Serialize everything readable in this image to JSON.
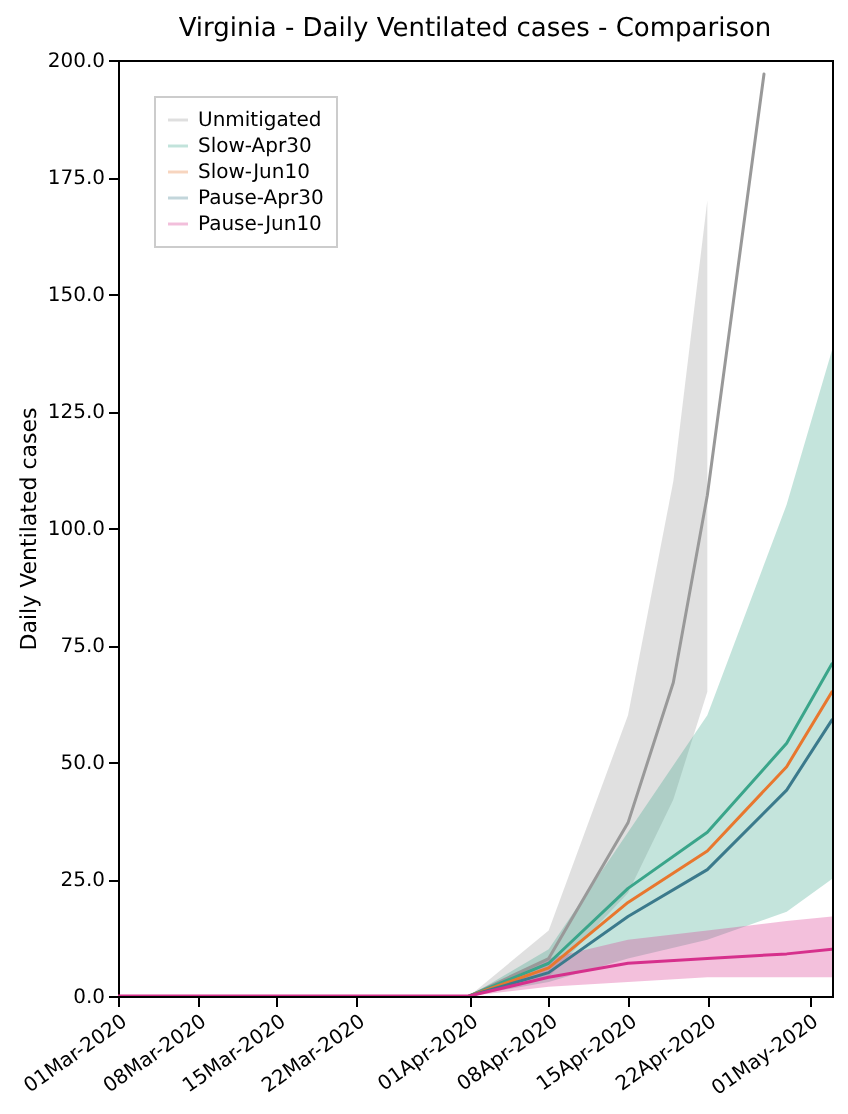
{
  "chart_data": {
    "type": "line",
    "title": "Virginia - Daily Ventilated cases - Comparison",
    "ylabel": "Daily Ventilated cases",
    "xlim": [
      "2020-03-01",
      "2020-05-03"
    ],
    "xticks": [
      {
        "value": "2020-03-01",
        "label": "01Mar-2020"
      },
      {
        "value": "2020-03-08",
        "label": "08Mar-2020"
      },
      {
        "value": "2020-03-15",
        "label": "15Mar-2020"
      },
      {
        "value": "2020-03-22",
        "label": "22Mar-2020"
      },
      {
        "value": "2020-04-01",
        "label": "01Apr-2020"
      },
      {
        "value": "2020-04-08",
        "label": "08Apr-2020"
      },
      {
        "value": "2020-04-15",
        "label": "15Apr-2020"
      },
      {
        "value": "2020-04-22",
        "label": "22Apr-2020"
      },
      {
        "value": "2020-05-01",
        "label": "01May-2020"
      }
    ],
    "ylim": [
      0,
      200
    ],
    "yticks": [
      {
        "value": 0,
        "label": "0.0"
      },
      {
        "value": 25,
        "label": "25.0"
      },
      {
        "value": 50,
        "label": "50.0"
      },
      {
        "value": 75,
        "label": "75.0"
      },
      {
        "value": 100,
        "label": "100.0"
      },
      {
        "value": 125,
        "label": "125.0"
      },
      {
        "value": 150,
        "label": "150.0"
      },
      {
        "value": 175,
        "label": "175.0"
      },
      {
        "value": 200,
        "label": "200.0"
      }
    ],
    "legend": "top left",
    "grid": false,
    "line_style": "solid",
    "series": [
      {
        "name": "Unmitigated",
        "color": "#999999",
        "x": [
          "2020-04-01",
          "2020-04-08",
          "2020-04-15",
          "2020-04-19",
          "2020-04-22",
          "2020-04-27"
        ],
        "values": [
          0,
          8,
          37,
          67,
          107,
          197
        ],
        "lower": [
          0,
          4,
          22,
          42,
          65,
          null
        ],
        "upper": [
          0,
          14,
          60,
          110,
          170,
          null
        ]
      },
      {
        "name": "Slow-Apr30",
        "color": "#3aa58a",
        "x": [
          "2020-04-01",
          "2020-04-08",
          "2020-04-15",
          "2020-04-22",
          "2020-04-29",
          "2020-05-03"
        ],
        "values": [
          0,
          7,
          23,
          35,
          54,
          71
        ],
        "lower": [
          0,
          3,
          8,
          12,
          18,
          25
        ],
        "upper": [
          0,
          10,
          35,
          60,
          105,
          138
        ]
      },
      {
        "name": "Slow-Jun10",
        "color": "#e8772e",
        "x": [
          "2020-04-01",
          "2020-04-08",
          "2020-04-15",
          "2020-04-22",
          "2020-04-29",
          "2020-05-03"
        ],
        "values": [
          0,
          6,
          20,
          31,
          49,
          65
        ]
      },
      {
        "name": "Pause-Apr30",
        "color": "#3b7a8c",
        "x": [
          "2020-04-01",
          "2020-04-08",
          "2020-04-15",
          "2020-04-22",
          "2020-04-29",
          "2020-05-03"
        ],
        "values": [
          0,
          5,
          17,
          27,
          44,
          59
        ]
      },
      {
        "name": "Pause-Jun10",
        "color": "#d6308c",
        "x": [
          "2020-03-01",
          "2020-03-22",
          "2020-04-01",
          "2020-04-08",
          "2020-04-15",
          "2020-04-22",
          "2020-04-29",
          "2020-05-03"
        ],
        "values": [
          0,
          0,
          0,
          4,
          7,
          8,
          9,
          10
        ],
        "lower": [
          0,
          0,
          0,
          2,
          3,
          4,
          4,
          4
        ],
        "upper": [
          0,
          0,
          0,
          8,
          12,
          14,
          16,
          17
        ]
      }
    ]
  }
}
